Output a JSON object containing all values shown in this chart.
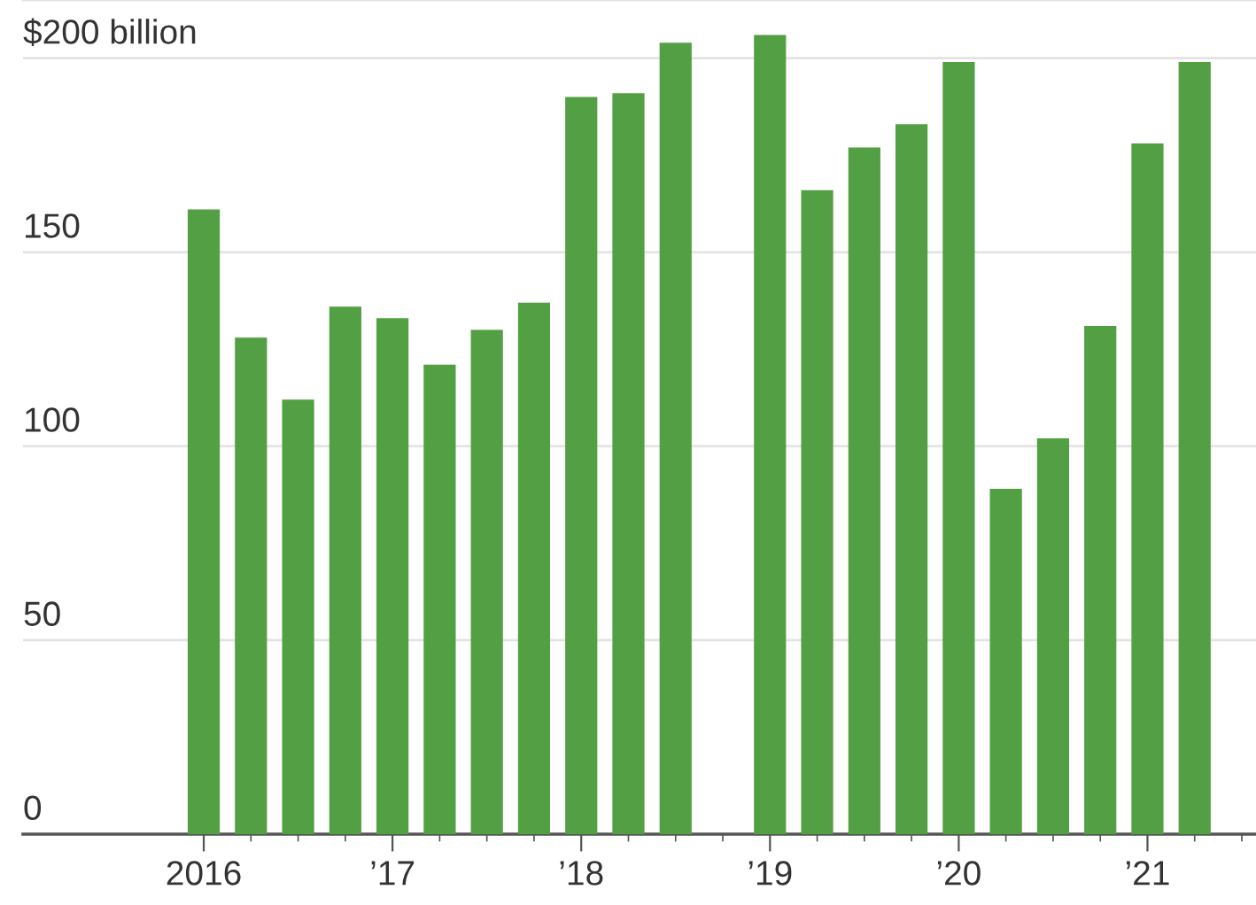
{
  "chart_data": {
    "type": "bar",
    "categories": [
      "2016",
      null,
      null,
      null,
      "’17",
      null,
      null,
      null,
      "’18",
      null,
      null,
      null,
      "’19",
      null,
      null,
      null,
      "’20",
      null,
      null,
      null,
      "’21",
      null,
      null
    ],
    "values": [
      161,
      128,
      112,
      136,
      133,
      121,
      130,
      137,
      190,
      191,
      204,
      null,
      206,
      166,
      177,
      183,
      199,
      89,
      102,
      131,
      178,
      199,
      null
    ],
    "color": "#53a044",
    "ylim": [
      0,
      215
    ],
    "yticks": [
      0,
      50,
      100,
      150,
      {
        "value": 200,
        "label": "$200 billion"
      }
    ],
    "grid": "y"
  }
}
